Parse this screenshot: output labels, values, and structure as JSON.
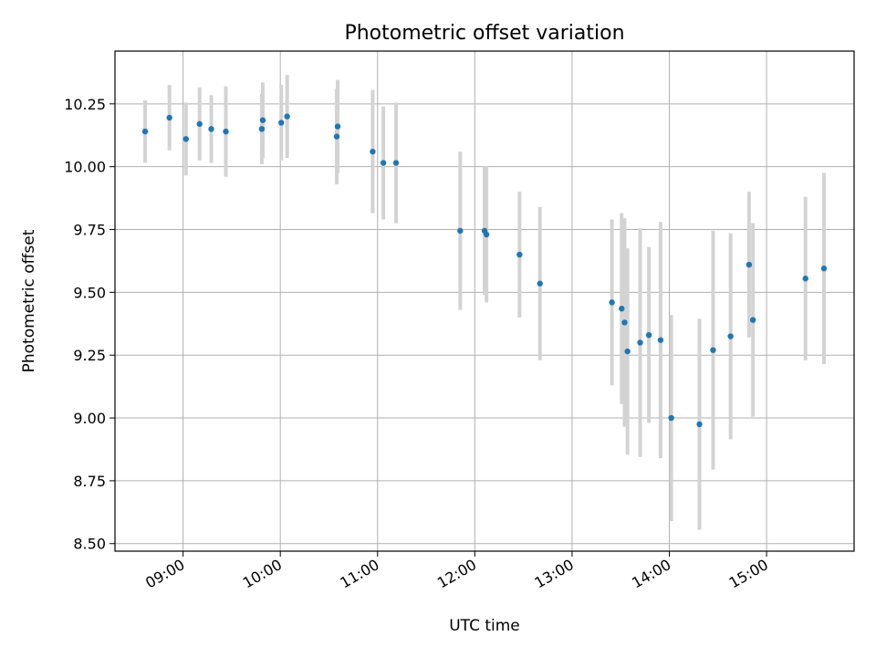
{
  "chart_data": {
    "type": "scatter",
    "title": "Photometric offset variation",
    "xlabel": "UTC time",
    "ylabel": "Photometric offset",
    "xlim_hours": [
      8.3,
      15.9
    ],
    "ylim": [
      8.47,
      10.46
    ],
    "grid": true,
    "yticks": [
      8.5,
      8.75,
      9.0,
      9.25,
      9.5,
      9.75,
      10.0,
      10.25
    ],
    "ytick_labels": [
      "8.50",
      "8.75",
      "9.00",
      "9.25",
      "9.50",
      "9.75",
      "10.00",
      "10.25"
    ],
    "xticks_hours": [
      9,
      10,
      11,
      12,
      13,
      14,
      15
    ],
    "xtick_labels": [
      "09:00",
      "10:00",
      "11:00",
      "12:00",
      "13:00",
      "14:00",
      "15:00"
    ],
    "marker_color": "#1f77b4",
    "errorbar_color": "#d3d3d3",
    "series": [
      {
        "name": "offset",
        "x_hours": [
          8.61,
          8.86,
          9.03,
          9.17,
          9.29,
          9.44,
          9.81,
          9.82,
          10.01,
          10.07,
          10.58,
          10.59,
          10.95,
          11.06,
          11.19,
          11.85,
          12.1,
          12.12,
          12.46,
          12.67,
          13.41,
          13.51,
          13.54,
          13.57,
          13.7,
          13.79,
          13.91,
          14.02,
          14.31,
          14.45,
          14.63,
          14.82,
          14.86,
          15.4,
          15.59
        ],
        "y": [
          10.14,
          10.195,
          10.11,
          10.17,
          10.15,
          10.14,
          10.15,
          10.185,
          10.175,
          10.2,
          10.12,
          10.16,
          10.06,
          10.015,
          10.015,
          9.745,
          9.745,
          9.73,
          9.65,
          9.535,
          9.46,
          9.435,
          9.38,
          9.265,
          9.3,
          9.33,
          9.31,
          9.0,
          8.975,
          9.27,
          9.325,
          9.61,
          9.39,
          9.555,
          9.595
        ],
        "err": [
          0.125,
          0.13,
          0.145,
          0.145,
          0.135,
          0.18,
          0.14,
          0.15,
          0.15,
          0.165,
          0.19,
          0.185,
          0.245,
          0.225,
          0.24,
          0.315,
          0.255,
          0.27,
          0.25,
          0.305,
          0.33,
          0.38,
          0.415,
          0.41,
          0.455,
          0.35,
          0.47,
          0.41,
          0.42,
          0.475,
          0.41,
          0.29,
          0.385,
          0.325,
          0.38
        ]
      }
    ]
  }
}
